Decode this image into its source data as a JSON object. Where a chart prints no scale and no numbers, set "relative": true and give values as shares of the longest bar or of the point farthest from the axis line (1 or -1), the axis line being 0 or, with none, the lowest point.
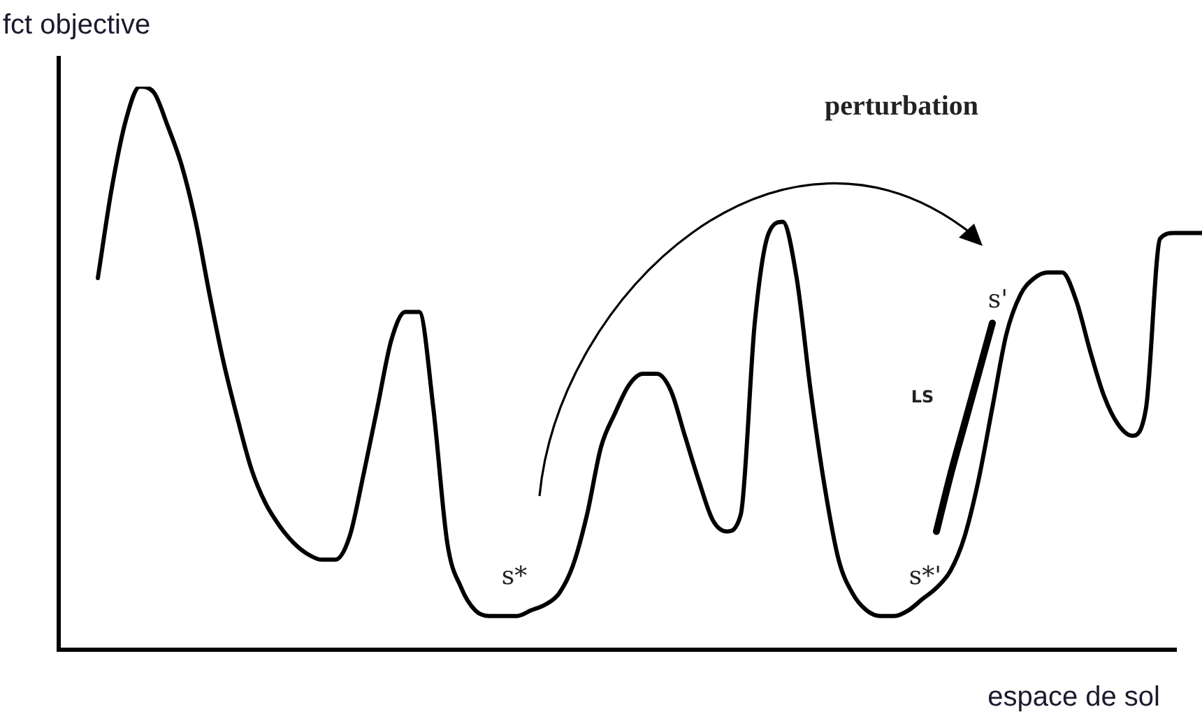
{
  "chart_data": {
    "type": "line",
    "relative": true,
    "xlabel": "espace de sol",
    "ylabel": "fct objective",
    "marker": "none",
    "legend": false,
    "annotations": [
      "perturbation",
      "s*",
      "s*'",
      "s'",
      "LS"
    ],
    "categories": [
      null,
      null,
      null,
      null,
      null,
      null,
      null,
      null,
      null,
      null,
      null,
      null,
      null,
      null,
      null,
      null,
      null,
      null,
      null,
      null,
      null,
      null,
      null,
      null,
      null,
      null,
      null,
      null,
      null,
      null,
      null,
      null,
      null,
      null,
      null,
      null,
      null,
      null,
      null,
      null,
      null,
      null,
      null,
      null,
      null,
      null,
      null,
      null,
      null,
      null,
      null,
      null,
      null,
      null,
      null,
      null,
      null,
      null,
      null,
      null,
      null,
      null,
      null,
      null,
      null,
      null,
      null,
      null,
      null,
      null,
      null,
      null,
      null,
      null,
      null,
      null,
      null,
      null,
      null,
      null
    ],
    "series": [
      {
        "color": "#000000",
        "values": [
          0.66,
          0.82,
          0.94,
          1,
          0.99,
          0.93,
          0.86,
          0.76,
          0.63,
          0.51,
          0.41,
          0.32,
          0.26,
          0.22,
          0.19,
          0.17,
          0.16,
          0.16,
          0.2,
          0.31,
          0.43,
          0.55,
          0.6,
          0.6,
          0.43,
          0.19,
          0.11,
          0.07,
          0.06,
          0.06,
          0.06,
          0.07,
          0.08,
          0.1,
          0.15,
          0.24,
          0.36,
          0.42,
          0.47,
          0.49,
          0.49,
          0.46,
          0.38,
          0.3,
          0.23,
          0.21,
          0.24,
          0.58,
          0.74,
          0.76,
          0.66,
          0.46,
          0.29,
          0.16,
          0.1,
          0.07,
          0.06,
          0.06,
          0.07,
          0.09,
          0.11,
          0.14,
          0.2,
          0.3,
          0.43,
          0.56,
          0.63,
          0.66,
          0.67,
          0.67,
          0.62,
          0.53,
          0.45,
          0.4,
          0.38,
          0.43,
          0.73,
          0.74,
          0.74,
          0.74
        ]
      },
      {
        "color": "#000000",
        "values": [
          null,
          null,
          null,
          null,
          null,
          null,
          null,
          null,
          null,
          null,
          null,
          null,
          null,
          null,
          null,
          null,
          null,
          null,
          null,
          null,
          null,
          null,
          null,
          null,
          null,
          null,
          null,
          null,
          null,
          null,
          null,
          null,
          null,
          null,
          null,
          null,
          null,
          null,
          null,
          null,
          null,
          null,
          null,
          null,
          null,
          null,
          null,
          null,
          null,
          null,
          null,
          null,
          null,
          null,
          null,
          null,
          null,
          null,
          null,
          null,
          0.21,
          0.31,
          0.4,
          0.49,
          0.58,
          null,
          null,
          null,
          null,
          null,
          null,
          null,
          null,
          null,
          null,
          null,
          null,
          null,
          null,
          null
        ]
      }
    ]
  }
}
